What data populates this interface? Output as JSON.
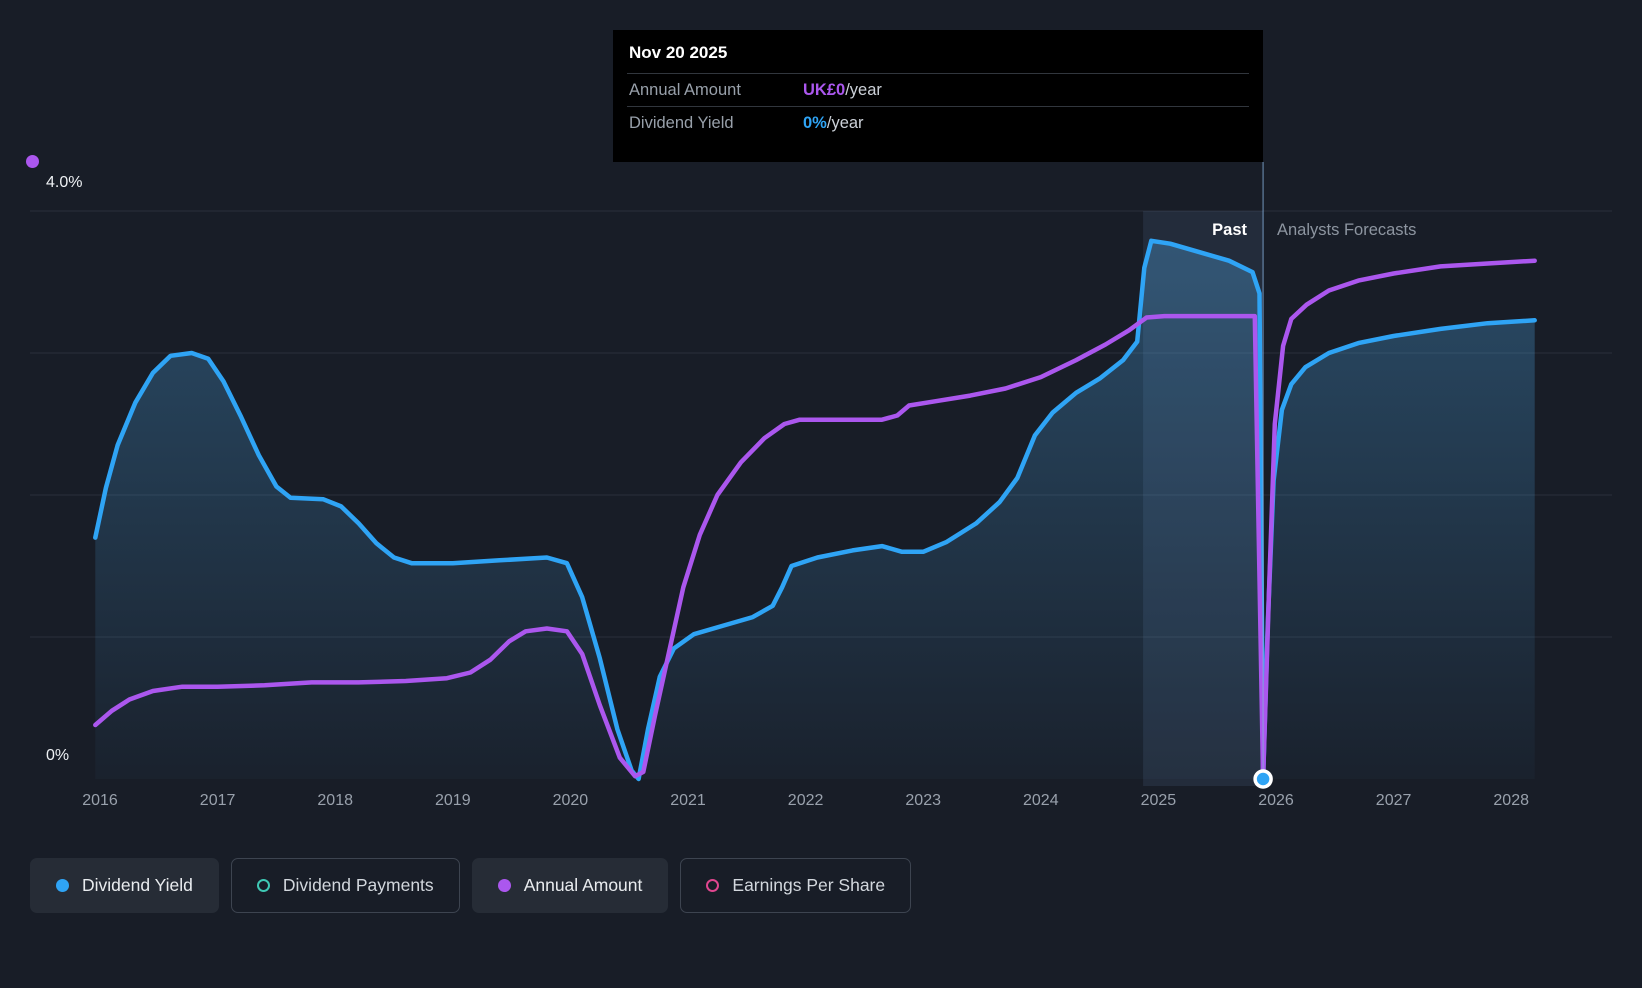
{
  "tooltip": {
    "date": "Nov 20 2025",
    "rows": [
      {
        "label": "Annual Amount",
        "value": "UK£0",
        "suffix": "/year",
        "color": "#ab57ee"
      },
      {
        "label": "Dividend Yield",
        "value": "0%",
        "suffix": "/year",
        "color": "#2fa4f5"
      }
    ]
  },
  "labels": {
    "past": "Past",
    "forecast": "Analysts Forecasts"
  },
  "axis": {
    "y_top_label": "4.0%",
    "y_bottom_label": "0%"
  },
  "legend": [
    {
      "label": "Dividend Yield",
      "marker": "filled",
      "color": "#2fa4f5",
      "active": true
    },
    {
      "label": "Dividend Payments",
      "marker": "outline",
      "color": "#3fc8b4",
      "active": false
    },
    {
      "label": "Annual Amount",
      "marker": "filled",
      "color": "#ab57ee",
      "active": true
    },
    {
      "label": "Earnings Per Share",
      "marker": "outline",
      "color": "#e0468f",
      "active": false
    }
  ],
  "chart_data": {
    "type": "line",
    "title": "Dividend history and forecast",
    "x_domain": [
      2015.95,
      2028.25
    ],
    "y_domain": [
      0,
      4.35
    ],
    "y_unit": "percent",
    "x_ticks": [
      2016,
      2017,
      2018,
      2019,
      2020,
      2021,
      2022,
      2023,
      2024,
      2025,
      2026,
      2027,
      2028
    ],
    "y_gridlines": [
      1,
      2,
      3,
      4
    ],
    "grid": true,
    "legend_position": "bottom",
    "past_band": [
      2024.87,
      2025.89
    ],
    "divider_x": 2025.89,
    "marker_point": {
      "x": 2025.89,
      "y": 0
    },
    "series": [
      {
        "name": "Dividend Yield",
        "color": "#2fa4f5",
        "area": true,
        "points": [
          [
            2015.96,
            1.7
          ],
          [
            2016.05,
            2.05
          ],
          [
            2016.15,
            2.35
          ],
          [
            2016.3,
            2.65
          ],
          [
            2016.45,
            2.86
          ],
          [
            2016.6,
            2.98
          ],
          [
            2016.78,
            3.0
          ],
          [
            2016.92,
            2.96
          ],
          [
            2017.05,
            2.8
          ],
          [
            2017.2,
            2.55
          ],
          [
            2017.35,
            2.28
          ],
          [
            2017.5,
            2.06
          ],
          [
            2017.62,
            1.98
          ],
          [
            2017.9,
            1.97
          ],
          [
            2018.05,
            1.92
          ],
          [
            2018.2,
            1.8
          ],
          [
            2018.35,
            1.66
          ],
          [
            2018.5,
            1.56
          ],
          [
            2018.65,
            1.52
          ],
          [
            2019.0,
            1.52
          ],
          [
            2019.4,
            1.54
          ],
          [
            2019.8,
            1.56
          ],
          [
            2019.97,
            1.52
          ],
          [
            2020.1,
            1.28
          ],
          [
            2020.25,
            0.85
          ],
          [
            2020.4,
            0.35
          ],
          [
            2020.52,
            0.06
          ],
          [
            2020.58,
            0.0
          ],
          [
            2020.66,
            0.35
          ],
          [
            2020.76,
            0.72
          ],
          [
            2020.88,
            0.92
          ],
          [
            2021.05,
            1.02
          ],
          [
            2021.3,
            1.08
          ],
          [
            2021.55,
            1.14
          ],
          [
            2021.72,
            1.22
          ],
          [
            2021.8,
            1.35
          ],
          [
            2021.88,
            1.5
          ],
          [
            2022.1,
            1.56
          ],
          [
            2022.4,
            1.61
          ],
          [
            2022.65,
            1.64
          ],
          [
            2022.82,
            1.6
          ],
          [
            2023.0,
            1.6
          ],
          [
            2023.2,
            1.67
          ],
          [
            2023.45,
            1.8
          ],
          [
            2023.65,
            1.95
          ],
          [
            2023.8,
            2.12
          ],
          [
            2023.95,
            2.42
          ],
          [
            2024.1,
            2.58
          ],
          [
            2024.3,
            2.72
          ],
          [
            2024.5,
            2.82
          ],
          [
            2024.7,
            2.95
          ],
          [
            2024.82,
            3.08
          ],
          [
            2024.88,
            3.6
          ],
          [
            2024.94,
            3.79
          ],
          [
            2025.1,
            3.77
          ],
          [
            2025.35,
            3.71
          ],
          [
            2025.6,
            3.65
          ],
          [
            2025.8,
            3.57
          ],
          [
            2025.86,
            3.42
          ],
          [
            2025.89,
            0.0
          ],
          [
            2025.93,
            1.1
          ],
          [
            2025.98,
            2.1
          ],
          [
            2026.05,
            2.6
          ],
          [
            2026.13,
            2.78
          ],
          [
            2026.25,
            2.9
          ],
          [
            2026.45,
            3.0
          ],
          [
            2026.7,
            3.07
          ],
          [
            2027.0,
            3.12
          ],
          [
            2027.4,
            3.17
          ],
          [
            2027.8,
            3.21
          ],
          [
            2028.2,
            3.23
          ]
        ]
      },
      {
        "name": "Annual Amount",
        "color": "#ab57ee",
        "area": false,
        "points": [
          [
            2015.96,
            0.38
          ],
          [
            2016.1,
            0.48
          ],
          [
            2016.25,
            0.56
          ],
          [
            2016.45,
            0.62
          ],
          [
            2016.7,
            0.65
          ],
          [
            2017.0,
            0.65
          ],
          [
            2017.4,
            0.66
          ],
          [
            2017.8,
            0.68
          ],
          [
            2018.2,
            0.68
          ],
          [
            2018.6,
            0.69
          ],
          [
            2018.95,
            0.71
          ],
          [
            2019.15,
            0.75
          ],
          [
            2019.32,
            0.84
          ],
          [
            2019.48,
            0.97
          ],
          [
            2019.62,
            1.04
          ],
          [
            2019.8,
            1.06
          ],
          [
            2019.97,
            1.04
          ],
          [
            2020.1,
            0.88
          ],
          [
            2020.25,
            0.52
          ],
          [
            2020.42,
            0.15
          ],
          [
            2020.55,
            0.02
          ],
          [
            2020.62,
            0.05
          ],
          [
            2020.72,
            0.45
          ],
          [
            2020.84,
            0.9
          ],
          [
            2020.96,
            1.35
          ],
          [
            2021.1,
            1.72
          ],
          [
            2021.25,
            2.0
          ],
          [
            2021.45,
            2.23
          ],
          [
            2021.65,
            2.4
          ],
          [
            2021.82,
            2.5
          ],
          [
            2021.95,
            2.53
          ],
          [
            2022.3,
            2.53
          ],
          [
            2022.65,
            2.53
          ],
          [
            2022.78,
            2.56
          ],
          [
            2022.88,
            2.63
          ],
          [
            2023.1,
            2.66
          ],
          [
            2023.4,
            2.7
          ],
          [
            2023.7,
            2.75
          ],
          [
            2024.0,
            2.83
          ],
          [
            2024.3,
            2.95
          ],
          [
            2024.55,
            3.06
          ],
          [
            2024.75,
            3.16
          ],
          [
            2024.9,
            3.25
          ],
          [
            2025.05,
            3.26
          ],
          [
            2025.45,
            3.26
          ],
          [
            2025.82,
            3.26
          ],
          [
            2025.89,
            0.0
          ],
          [
            2025.94,
            1.3
          ],
          [
            2025.99,
            2.5
          ],
          [
            2026.06,
            3.05
          ],
          [
            2026.13,
            3.24
          ],
          [
            2026.26,
            3.34
          ],
          [
            2026.45,
            3.44
          ],
          [
            2026.7,
            3.51
          ],
          [
            2027.0,
            3.56
          ],
          [
            2027.4,
            3.61
          ],
          [
            2027.8,
            3.63
          ],
          [
            2028.2,
            3.65
          ]
        ]
      }
    ]
  }
}
